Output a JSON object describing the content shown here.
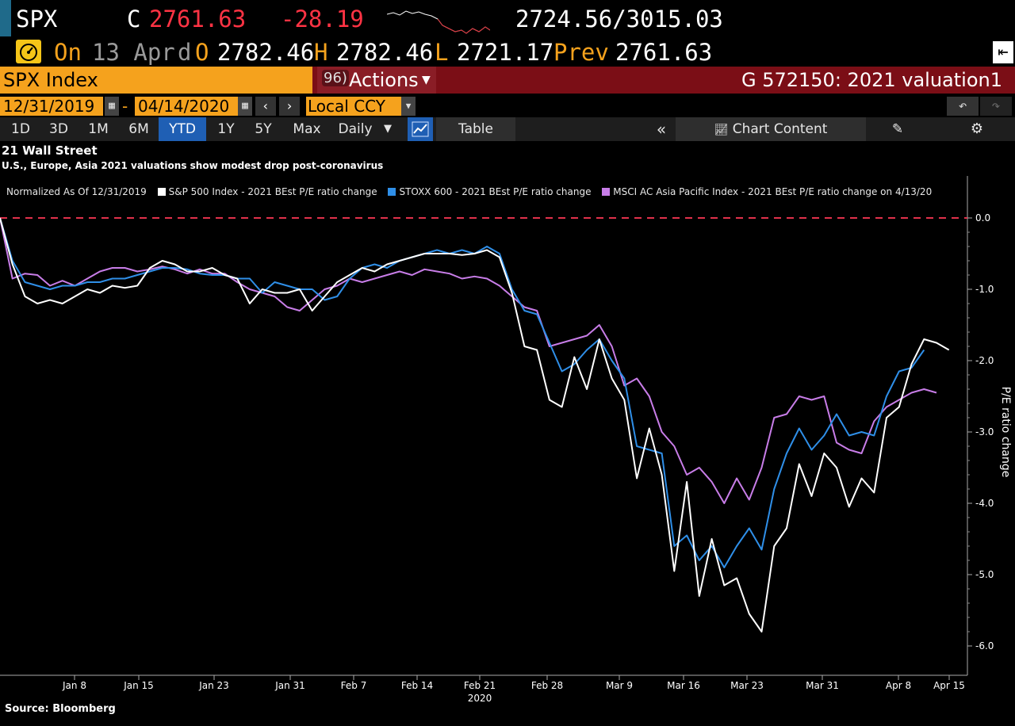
{
  "header": {
    "ticker": "SPX",
    "last_label": "C",
    "last_price": "2761.63",
    "change": "-28.19",
    "range": "2724.56/3015.03",
    "on_label": "On",
    "date_label": "13 Apr",
    "d_label": "d",
    "open_label": "O",
    "open": "2782.46",
    "high_label": "H",
    "high": "2782.46",
    "low_label": "L",
    "low": "2721.17",
    "prev_label": "Prev",
    "prev": "2761.63"
  },
  "command_bar": {
    "security": "SPX Index",
    "actions_num": "96)",
    "actions_label": "Actions",
    "chart_title": "G 572150: 2021 valuation1"
  },
  "date_bar": {
    "start": "12/31/2019",
    "separator": "-",
    "end": "04/14/2020",
    "currency": "Local CCY"
  },
  "tabs": {
    "periods": [
      "1D",
      "3D",
      "1M",
      "6M",
      "YTD",
      "1Y",
      "5Y",
      "Max"
    ],
    "selected": "YTD",
    "frequency": "Daily",
    "table": "Table",
    "chart_content": "Chart Content"
  },
  "chart_heading": {
    "title": "21 Wall Street",
    "subtitle": "U.S., Europe, Asia 2021 valuations show modest drop post-coronavirus"
  },
  "legend": {
    "normalized": "Normalized As Of 12/31/2019",
    "items": [
      "S&P 500 Index - 2021 BEst P/E ratio change",
      "STOXX 600 - 2021 BEst P/E ratio change",
      "MSCI AC Asia Pacific Index - 2021 BEst P/E ratio change on 4/13/20"
    ]
  },
  "source": "Source: Bloomberg",
  "colors": {
    "sp500": "#ffffff",
    "stoxx": "#2f8fe8",
    "msci": "#c87de8",
    "zero_line": "#e0314b",
    "accent_orange": "#f5a21d"
  },
  "chart_data": {
    "type": "line",
    "ylabel": "P/E ratio change",
    "ylim": [
      -6.0,
      0.0
    ],
    "yticks": [
      "0.0",
      "-1.0",
      "-2.0",
      "-3.0",
      "-4.0",
      "-5.0",
      "-6.0"
    ],
    "xticks": [
      "Jan 8",
      "Jan 15",
      "Jan 23",
      "Jan 31",
      "Feb 7",
      "Feb 14",
      "Feb 21",
      "Feb 28",
      "Mar 9",
      "Mar 16",
      "Mar 23",
      "Mar 31",
      "Apr 8",
      "Apr 15"
    ],
    "x_year_label": "2020",
    "reference_line": 0.0,
    "series": [
      {
        "name": "S&P 500 Index - 2021 BEst P/E ratio change",
        "color": "#ffffff",
        "values": [
          0.0,
          -0.65,
          -1.1,
          -1.2,
          -1.15,
          -1.2,
          -1.1,
          -1.0,
          -1.05,
          -0.95,
          -0.98,
          -0.95,
          -0.7,
          -0.6,
          -0.65,
          -0.75,
          -0.75,
          -0.7,
          -0.8,
          -0.85,
          -1.2,
          -1.0,
          -1.05,
          -1.05,
          -1.0,
          -1.3,
          -1.1,
          -0.9,
          -0.8,
          -0.7,
          -0.75,
          -0.65,
          -0.6,
          -0.55,
          -0.5,
          -0.5,
          -0.5,
          -0.52,
          -0.5,
          -0.45,
          -0.55,
          -1.05,
          -1.8,
          -1.85,
          -2.55,
          -2.65,
          -1.95,
          -2.4,
          -1.7,
          -2.25,
          -2.55,
          -3.65,
          -2.95,
          -3.6,
          -4.95,
          -3.7,
          -5.3,
          -4.5,
          -5.15,
          -5.05,
          -5.55,
          -5.8,
          -4.6,
          -4.35,
          -3.45,
          -3.9,
          -3.3,
          -3.5,
          -4.05,
          -3.65,
          -3.85,
          -2.8,
          -2.65,
          -2.05,
          -1.7,
          -1.75,
          -1.85
        ]
      },
      {
        "name": "STOXX 600 - 2021 BEst P/E ratio change",
        "color": "#2f8fe8",
        "values": [
          0.0,
          -0.6,
          -0.9,
          -0.95,
          -1.0,
          -0.95,
          -0.95,
          -0.9,
          -0.9,
          -0.85,
          -0.85,
          -0.8,
          -0.75,
          -0.7,
          -0.7,
          -0.72,
          -0.78,
          -0.8,
          -0.8,
          -0.85,
          -0.85,
          -1.05,
          -0.9,
          -0.95,
          -1.0,
          -1.0,
          -1.15,
          -1.1,
          -0.85,
          -0.7,
          -0.65,
          -0.7,
          -0.6,
          -0.55,
          -0.5,
          -0.45,
          -0.5,
          -0.45,
          -0.5,
          -0.4,
          -0.5,
          -1.0,
          -1.3,
          -1.35,
          -1.75,
          -2.15,
          -2.05,
          -1.85,
          -1.7,
          -2.0,
          -2.25,
          -3.2,
          -3.25,
          -3.3,
          -4.6,
          -4.45,
          -4.8,
          -4.6,
          -4.9,
          -4.6,
          -4.35,
          -4.65,
          -3.8,
          -3.3,
          -2.95,
          -3.25,
          -3.05,
          -2.75,
          -3.05,
          -3.0,
          -3.05,
          -2.5,
          -2.15,
          -2.1,
          -1.85
        ]
      },
      {
        "name": "MSCI AC Asia Pacific Index - 2021 BEst P/E ratio change on 4/13/20",
        "color": "#c87de8",
        "values": [
          0.0,
          -0.85,
          -0.78,
          -0.8,
          -0.95,
          -0.88,
          -0.95,
          -0.85,
          -0.75,
          -0.7,
          -0.7,
          -0.75,
          -0.72,
          -0.68,
          -0.72,
          -0.78,
          -0.72,
          -0.78,
          -0.78,
          -0.9,
          -1.0,
          -1.05,
          -1.1,
          -1.25,
          -1.3,
          -1.15,
          -1.0,
          -0.95,
          -0.85,
          -0.9,
          -0.85,
          -0.8,
          -0.75,
          -0.8,
          -0.72,
          -0.75,
          -0.78,
          -0.85,
          -0.82,
          -0.85,
          -0.95,
          -1.1,
          -1.25,
          -1.3,
          -1.8,
          -1.75,
          -1.7,
          -1.65,
          -1.5,
          -1.8,
          -2.35,
          -2.25,
          -2.5,
          -3.0,
          -3.2,
          -3.6,
          -3.5,
          -3.7,
          -4.0,
          -3.65,
          -3.95,
          -3.5,
          -2.8,
          -2.75,
          -2.5,
          -2.55,
          -2.5,
          -3.15,
          -3.25,
          -3.3,
          -2.85,
          -2.65,
          -2.55,
          -2.45,
          -2.4,
          -2.45
        ]
      }
    ]
  }
}
